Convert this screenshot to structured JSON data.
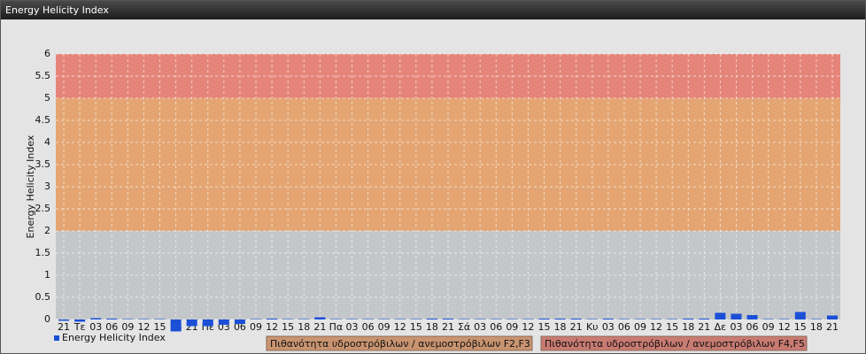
{
  "header": {
    "title": "Energy Helicity Index"
  },
  "chart_data": {
    "type": "bar",
    "y_label": "Energy Helicity Index",
    "categories": [
      "21",
      "Τε",
      "03",
      "06",
      "09",
      "12",
      "15",
      "18",
      "21",
      "Πε",
      "03",
      "06",
      "09",
      "12",
      "15",
      "18",
      "21",
      "Πα",
      "03",
      "06",
      "09",
      "12",
      "15",
      "18",
      "21",
      "Σά",
      "03",
      "06",
      "09",
      "12",
      "15",
      "18",
      "21",
      "Κυ",
      "03",
      "06",
      "09",
      "12",
      "15",
      "18",
      "21",
      "Δε",
      "03",
      "06",
      "09",
      "12",
      "15",
      "18",
      "21"
    ],
    "series": [
      {
        "name": "Energy Helicity Index",
        "color": "#1a4fd6",
        "values": [
          -0.03,
          -0.05,
          0.03,
          0.02,
          0.01,
          0.01,
          0.01,
          -0.27,
          -0.15,
          -0.15,
          -0.12,
          -0.1,
          0.01,
          0.02,
          0.01,
          0.01,
          0.05,
          0.01,
          0.01,
          0.01,
          0.01,
          0.01,
          0.01,
          0.02,
          0.02,
          0.01,
          0.01,
          0.01,
          0.01,
          0.01,
          0.02,
          0.02,
          0.02,
          0.01,
          0.02,
          0.01,
          0.01,
          0.01,
          0.01,
          0.02,
          0.02,
          0.15,
          0.13,
          0.1,
          0.01,
          0.01,
          0.17,
          0.01,
          0.09
        ]
      }
    ],
    "ylim": [
      0,
      6
    ],
    "yticks": [
      0,
      0.5,
      1,
      1.5,
      2,
      2.5,
      3,
      3.5,
      4,
      4.5,
      5,
      5.5,
      6
    ],
    "grid": true,
    "bands": [
      {
        "from": 0,
        "to": 2,
        "color": "#c4c7ca"
      },
      {
        "from": 2,
        "to": 5,
        "color": "#e4a572",
        "label": "Πιθανότητα υδροστρόβιλων / ανεμοστρόβιλων F2,F3",
        "legend_color": "#c99470"
      },
      {
        "from": 5,
        "to": 6,
        "color": "#e5857a",
        "label": "Πιθανότητα υδροστρόβιλων / ανεμοστρόβιλων F4,F5",
        "legend_color": "#c97b72"
      }
    ]
  }
}
